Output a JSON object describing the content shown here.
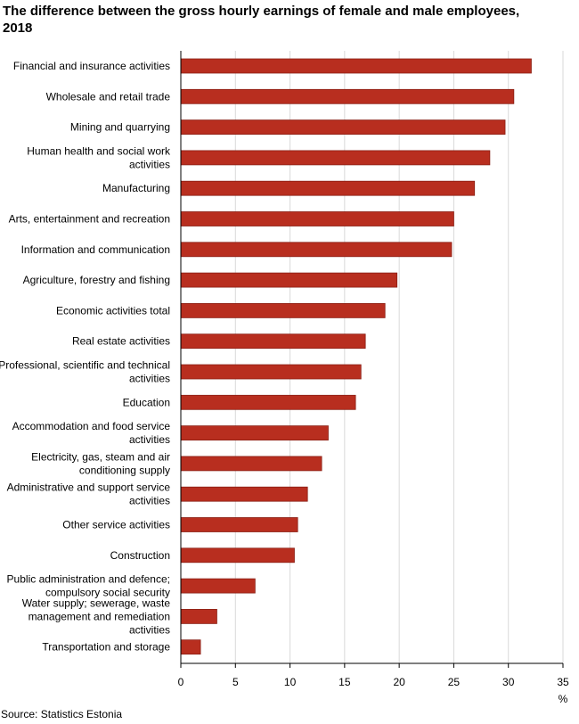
{
  "title": "The difference between the gross hourly earnings of female and male employees, 2018",
  "source": "Source: Statistics Estonia",
  "colors": {
    "bar": "#b82e1f",
    "bar_edge": "#8a1f14",
    "grid": "#d9d9d9"
  },
  "chart_data": {
    "type": "bar",
    "orientation": "horizontal",
    "unit_label": "%",
    "xlim": [
      0,
      35
    ],
    "xticks": [
      0,
      5,
      10,
      15,
      20,
      25,
      30,
      35
    ],
    "grid": true,
    "categories": [
      [
        "Financial and insurance activities"
      ],
      [
        "Wholesale and retail trade"
      ],
      [
        "Mining and quarrying"
      ],
      [
        "Human health and social work",
        "activities"
      ],
      [
        "Manufacturing"
      ],
      [
        "Arts, entertainment and recreation"
      ],
      [
        "Information and communication"
      ],
      [
        "Agriculture, forestry and fishing"
      ],
      [
        "Economic activities total"
      ],
      [
        "Real estate activities"
      ],
      [
        "Professional, scientific and technical",
        "activities"
      ],
      [
        "Education"
      ],
      [
        "Accommodation and food service",
        "activities"
      ],
      [
        "Electricity, gas, steam and air",
        "conditioning supply"
      ],
      [
        "Administrative and support service",
        "activities"
      ],
      [
        "Other service activities"
      ],
      [
        "Construction"
      ],
      [
        "Public administration and defence;",
        "compulsory social security"
      ],
      [
        "Water supply; sewerage, waste",
        "management and remediation",
        "activities"
      ],
      [
        "Transportation and storage"
      ]
    ],
    "values": [
      32.1,
      30.5,
      29.7,
      28.3,
      26.9,
      25.0,
      24.8,
      19.8,
      18.7,
      16.9,
      16.5,
      16.0,
      13.5,
      12.9,
      11.6,
      10.7,
      10.4,
      6.8,
      3.3,
      1.8
    ]
  }
}
